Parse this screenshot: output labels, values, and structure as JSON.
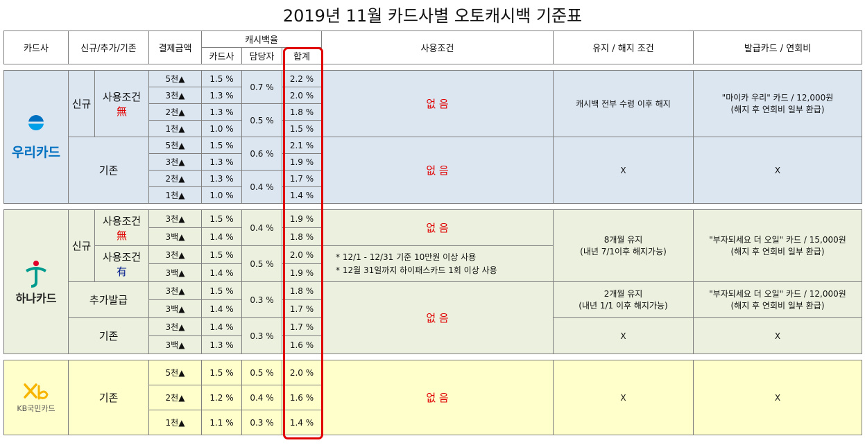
{
  "title": "2019년 11월 카드사별 오토캐시백 기준표",
  "headers": {
    "card_company": "카드사",
    "type": "신규/추가/기존",
    "payment": "결제금액",
    "cashback_rate": "캐시백율",
    "card_rate": "카드사",
    "agent_rate": "담당자",
    "total": "합계",
    "usage_condition": "사용조건",
    "keep_cancel": "유지 / 해지 조건",
    "issue_card": "발급카드 / 연회비"
  },
  "woori": {
    "logo_text": "우리카드",
    "new_label": "신규",
    "usage_cond_label": "사용조건",
    "no_mark": "無",
    "new_rows": [
      {
        "amount": "5천▲",
        "card": "1.5 %",
        "total": "2.2 %"
      },
      {
        "amount": "3천▲",
        "card": "1.3 %",
        "total": "2.0 %"
      },
      {
        "amount": "2천▲",
        "card": "1.3 %",
        "total": "1.8 %"
      },
      {
        "amount": "1천▲",
        "card": "1.0 %",
        "total": "1.5 %"
      }
    ],
    "new_agent": [
      "0.7 %",
      "0.5 %"
    ],
    "new_condition": "없 음",
    "new_keep": "캐시백 전부 수령 이후 해지",
    "new_card_line1": "\"마이카 우리\" 카드 / 12,000원",
    "new_card_line2": "(해지 후 연회비 일부 환급)",
    "existing_label": "기존",
    "existing_rows": [
      {
        "amount": "5천▲",
        "card": "1.5 %",
        "total": "2.1 %"
      },
      {
        "amount": "3천▲",
        "card": "1.3 %",
        "total": "1.9 %"
      },
      {
        "amount": "2천▲",
        "card": "1.3 %",
        "total": "1.7 %"
      },
      {
        "amount": "1천▲",
        "card": "1.0 %",
        "total": "1.4 %"
      }
    ],
    "existing_agent": [
      "0.6 %",
      "0.4 %"
    ],
    "existing_condition": "없 음",
    "existing_keep": "X",
    "existing_card": "X"
  },
  "hana": {
    "logo_text": "하나카드",
    "new_label": "신규",
    "usage_cond_label": "사용조건",
    "no_mark": "無",
    "yes_mark": "有",
    "new_rows": [
      {
        "amount": "3천▲",
        "card": "1.5 %",
        "total": "1.9 %"
      },
      {
        "amount": "3백▲",
        "card": "1.4 %",
        "total": "1.8 %"
      },
      {
        "amount": "3천▲",
        "card": "1.5 %",
        "total": "2.0 %"
      },
      {
        "amount": "3백▲",
        "card": "1.4 %",
        "total": "1.9 %"
      }
    ],
    "new_agent": [
      "0.4 %",
      "0.5 %"
    ],
    "new_condition_none": "없 음",
    "new_condition_line1": "* 12/1 - 12/31 기준 10만원 이상 사용",
    "new_condition_line2": "* 12월 31일까지 하이패스카드 1회 이상 사용",
    "new_keep_line1": "8개월 유지",
    "new_keep_line2": "(내년 7/1이후 해지가능)",
    "new_card_line1": "\"부자되세요 더 오일\" 카드 / 15,000원",
    "new_card_line2": "(해지 후 연회비 일부 환급)",
    "add_label": "추가발급",
    "add_rows": [
      {
        "amount": "3천▲",
        "card": "1.5 %",
        "total": "1.8 %"
      },
      {
        "amount": "3백▲",
        "card": "1.4 %",
        "total": "1.7 %"
      }
    ],
    "add_agent": "0.3 %",
    "add_keep_line1": "2개월 유지",
    "add_keep_line2": "(내년 1/1 이후 해지가능)",
    "add_card_line1": "\"부자되세요 더 오일\" 카드 / 12,000원",
    "add_card_line2": "(해지 후 연회비 일부 환급)",
    "add_existing_condition": "없 음",
    "existing_label": "기존",
    "existing_rows": [
      {
        "amount": "3천▲",
        "card": "1.4 %",
        "total": "1.7 %"
      },
      {
        "amount": "3백▲",
        "card": "1.3 %",
        "total": "1.6 %"
      }
    ],
    "existing_agent": "0.3 %",
    "existing_keep": "X",
    "existing_card": "X"
  },
  "kb": {
    "logo_text": "KB국민카드",
    "existing_label": "기존",
    "rows": [
      {
        "amount": "5천▲",
        "card": "1.5 %",
        "agent": "0.5 %",
        "total": "2.0 %"
      },
      {
        "amount": "2천▲",
        "card": "1.2 %",
        "agent": "0.4 %",
        "total": "1.6 %"
      },
      {
        "amount": "1천▲",
        "card": "1.1 %",
        "agent": "0.3 %",
        "total": "1.4 %"
      }
    ],
    "condition": "없 음",
    "keep": "X",
    "card": "X"
  },
  "colors": {
    "woori_bg": "#dce6f1",
    "hana_bg": "#ebf1de",
    "kb_bg": "#ffffcc",
    "highlight": "#e00000",
    "woori_blue": "#0070c0",
    "hana_teal": "#009b8f",
    "kb_yellow": "#f7b500"
  }
}
